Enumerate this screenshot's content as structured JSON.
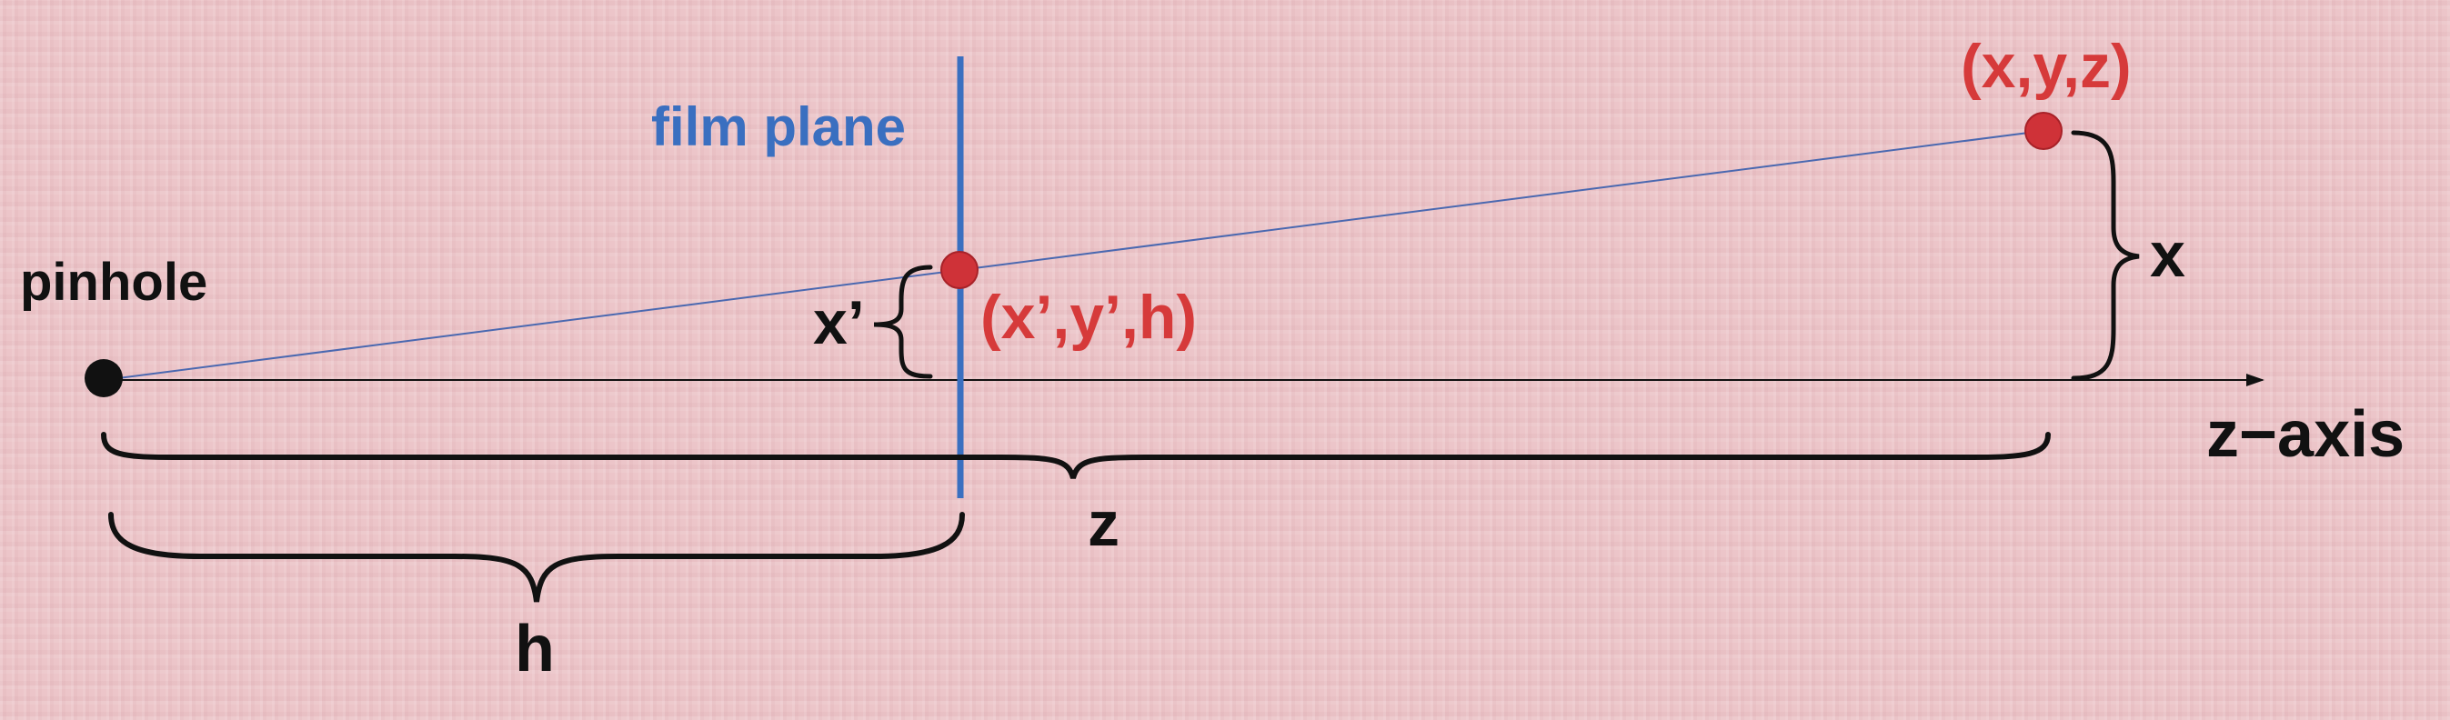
{
  "labels": {
    "pinhole": "pinhole",
    "film_plane": "film plane",
    "point_3d": "(x,y,z)",
    "point_image": "(x’,y’,h)",
    "x_image": "x’",
    "x_world": "x",
    "z_axis": "z−axis",
    "z": "z",
    "h": "h"
  },
  "colors": {
    "background": "#ecc5c9",
    "blue": "#3a6fc0",
    "red": "#d63a3a",
    "point_fill": "#cf3238",
    "black": "#111111",
    "ray": "#4a68b0"
  }
}
